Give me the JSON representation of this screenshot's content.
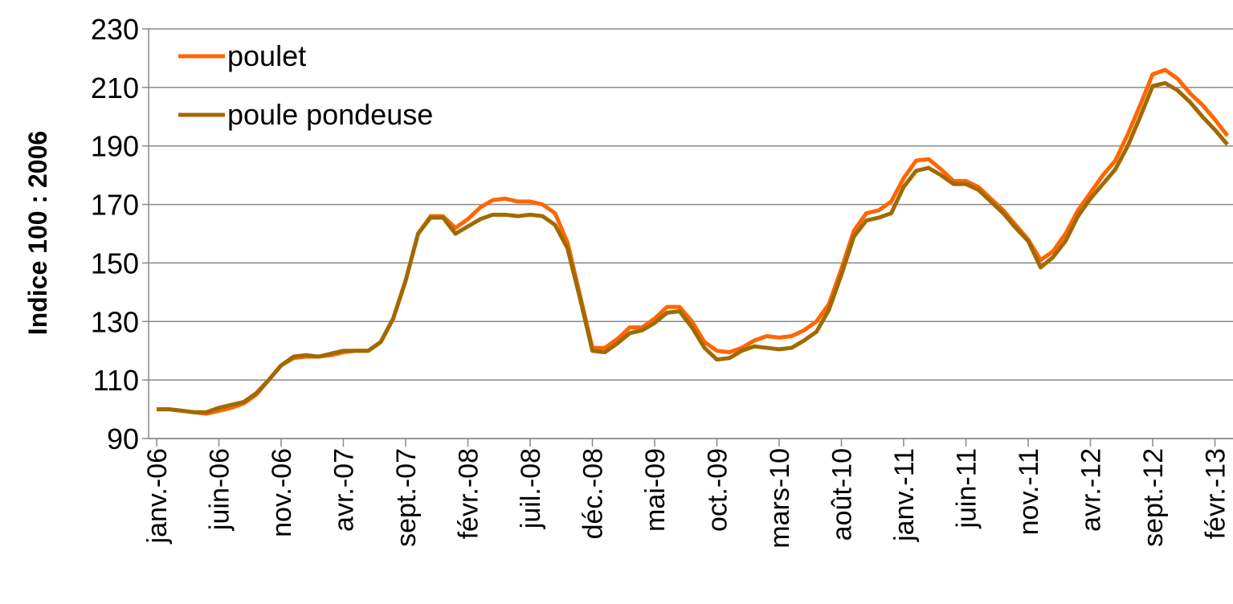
{
  "chart_data": {
    "type": "line",
    "y_label": "Indice 100 : 2006",
    "categories": [
      "janv.-06",
      null,
      null,
      null,
      null,
      "juin-06",
      null,
      null,
      null,
      null,
      "nov.-06",
      null,
      null,
      null,
      null,
      "avr.-07",
      null,
      null,
      null,
      null,
      "sept.-07",
      null,
      null,
      null,
      null,
      "févr.-08",
      null,
      null,
      null,
      null,
      "juil.-08",
      null,
      null,
      null,
      null,
      "déc.-08",
      null,
      null,
      null,
      null,
      "mai-09",
      null,
      null,
      null,
      null,
      "oct.-09",
      null,
      null,
      null,
      null,
      "mars-10",
      null,
      null,
      null,
      null,
      "août-10",
      null,
      null,
      null,
      null,
      "janv.-11",
      null,
      null,
      null,
      null,
      "juin-11",
      null,
      null,
      null,
      null,
      "nov.-11",
      null,
      null,
      null,
      null,
      "avr.-12",
      null,
      null,
      null,
      null,
      "sept.-12",
      null,
      null,
      null,
      null,
      "févr.-13",
      null
    ],
    "series": [
      {
        "name": "poulet",
        "color": "#ff6600",
        "values": [
          100,
          100,
          99.5,
          99,
          98.5,
          99.5,
          100.5,
          102,
          105,
          110,
          115,
          117.5,
          118,
          118,
          118.5,
          119.5,
          120,
          120,
          123,
          131,
          144,
          160,
          166,
          166,
          162,
          165,
          169,
          171.5,
          172,
          171,
          171,
          170,
          167,
          157,
          139,
          121,
          121,
          124,
          128,
          128,
          131,
          135,
          135,
          130,
          123,
          120,
          119.5,
          121,
          123.5,
          125,
          124.5,
          125,
          127,
          130,
          136,
          148,
          161,
          167,
          168,
          171,
          179,
          185,
          185.5,
          182,
          178,
          178,
          176,
          172,
          168,
          163,
          158,
          151,
          154,
          160,
          168,
          174,
          180,
          185,
          194,
          204,
          214.5,
          216,
          213,
          208,
          204,
          199,
          193.5
        ]
      },
      {
        "name": "poule pondeuse",
        "color": "#a06a00",
        "values": [
          100,
          100,
          99.5,
          99,
          99,
          100.5,
          101.5,
          102.5,
          105.5,
          110,
          115,
          118,
          118.5,
          118,
          119,
          120,
          120,
          120,
          123,
          131,
          144,
          160,
          165.5,
          165.5,
          160,
          162.5,
          165,
          166.5,
          166.5,
          166,
          166.5,
          166,
          163,
          155,
          138,
          120,
          119.5,
          122.5,
          126,
          127,
          129.5,
          133,
          133.5,
          128,
          121,
          117,
          117.5,
          120,
          121.5,
          121,
          120.5,
          121,
          123.5,
          126.5,
          134,
          146,
          159,
          164.5,
          165.5,
          167,
          176,
          181.5,
          182.5,
          180,
          177,
          177,
          175,
          171,
          167,
          162,
          157.5,
          148.5,
          152,
          157.5,
          166,
          172,
          177,
          182,
          190,
          200,
          210.5,
          211.5,
          209,
          205,
          200,
          195.5,
          190.5
        ]
      }
    ],
    "ylim": [
      90,
      230
    ],
    "yticks": [
      90,
      110,
      130,
      150,
      170,
      190,
      210,
      230
    ],
    "grid": true,
    "legend": "top-left"
  }
}
